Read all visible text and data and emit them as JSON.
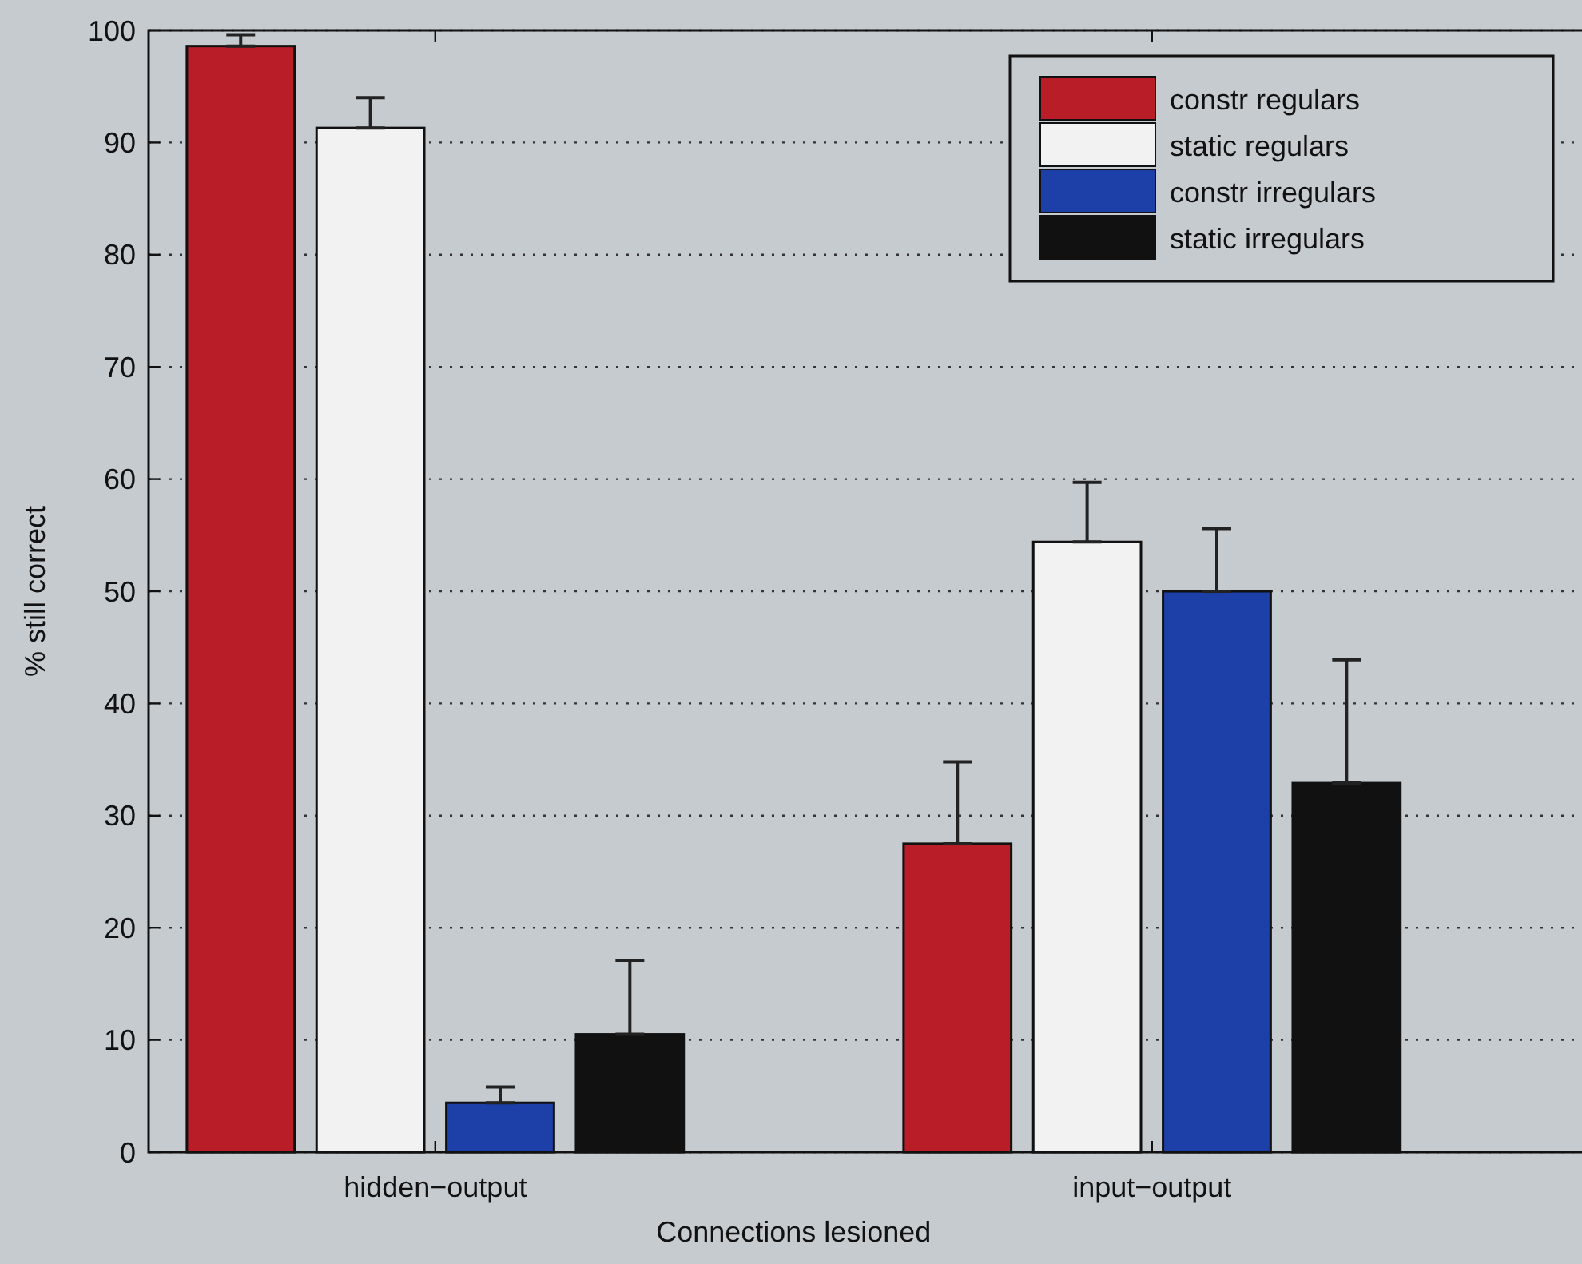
{
  "chart_data": {
    "type": "bar",
    "xlabel": "Connections lesioned",
    "ylabel": "% still correct",
    "categories": [
      "hidden−output",
      "input−output"
    ],
    "series": [
      {
        "name": "constr regulars",
        "color": "#b81d28",
        "values": [
          98.6,
          27.5
        ],
        "errors": [
          [
            98.6,
            99.6
          ],
          [
            27.5,
            34.8
          ]
        ]
      },
      {
        "name": "static regulars",
        "color": "#f2f2f2",
        "values": [
          91.3,
          54.4
        ],
        "errors": [
          [
            91.3,
            94.0
          ],
          [
            54.4,
            59.7
          ]
        ]
      },
      {
        "name": "constr irregulars",
        "color": "#1c3fa8",
        "values": [
          4.4,
          50.0
        ],
        "errors": [
          [
            4.4,
            5.8
          ],
          [
            50.0,
            55.6
          ]
        ]
      },
      {
        "name": "static irregulars",
        "color": "#111111",
        "values": [
          10.5,
          32.9
        ],
        "errors": [
          [
            10.5,
            17.1
          ],
          [
            32.9,
            43.9
          ]
        ]
      }
    ],
    "ylim": [
      0,
      100
    ],
    "yticks": [
      0,
      10,
      20,
      30,
      40,
      50,
      60,
      70,
      80,
      90,
      100
    ],
    "grid": "y",
    "legend": "top right"
  }
}
